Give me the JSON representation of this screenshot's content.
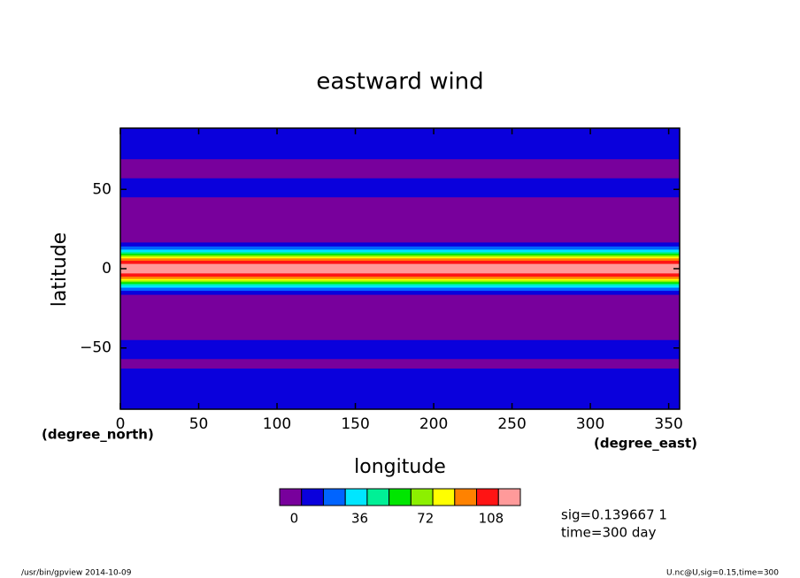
{
  "chart_data": {
    "type": "contour",
    "title": "eastward wind",
    "x_label": "longitude",
    "y_label": "latitude",
    "x_units": "(degree_east)",
    "y_units": "(degree_north)",
    "xlim": [
      0,
      357
    ],
    "xticks": [
      0,
      50,
      100,
      150,
      200,
      250,
      300,
      350
    ],
    "ylim": [
      -88.6,
      88.6
    ],
    "yticks": [
      {
        "value": -50,
        "label": "−50"
      },
      0,
      50
    ],
    "latitudes": [
      88,
      80,
      72,
      66,
      60,
      54,
      48,
      42,
      36,
      30,
      24,
      18,
      15,
      13,
      11,
      10,
      9,
      8,
      7,
      6,
      4,
      2,
      0,
      -2,
      -4,
      -6,
      -7,
      -8,
      -9,
      -10,
      -11,
      -13,
      -15,
      -18,
      -24,
      -30,
      -36,
      -42,
      -48,
      -54,
      -60,
      -66,
      -72,
      -80,
      -88
    ],
    "values": [
      5,
      5,
      5,
      -5,
      -3,
      5,
      5,
      -5,
      -8,
      -6,
      -4,
      -2,
      6,
      18,
      30,
      42,
      54,
      66,
      78,
      90,
      102,
      112,
      114,
      112,
      102,
      90,
      78,
      66,
      54,
      42,
      30,
      18,
      6,
      -2,
      -4,
      -6,
      -8,
      -6,
      5,
      5,
      -3,
      5,
      5,
      5,
      5
    ],
    "colorbar": {
      "colors": [
        "#78009c",
        "#0a00dc",
        "#0064ff",
        "#00e6ff",
        "#00f096",
        "#00e600",
        "#8cf000",
        "#ffff00",
        "#ff8200",
        "#ff1414",
        "#ff9a9a"
      ],
      "levels": [
        0,
        12,
        24,
        36,
        48,
        60,
        72,
        84,
        96,
        108
      ],
      "ticks": [
        0,
        36,
        72,
        108
      ]
    },
    "annotations": [
      "sig=0.139667 1",
      "time=300 day"
    ],
    "footer_left": "/usr/bin/gpview   2014-10-09",
    "footer_right": "U.nc@U,sig=0.15,time=300"
  }
}
